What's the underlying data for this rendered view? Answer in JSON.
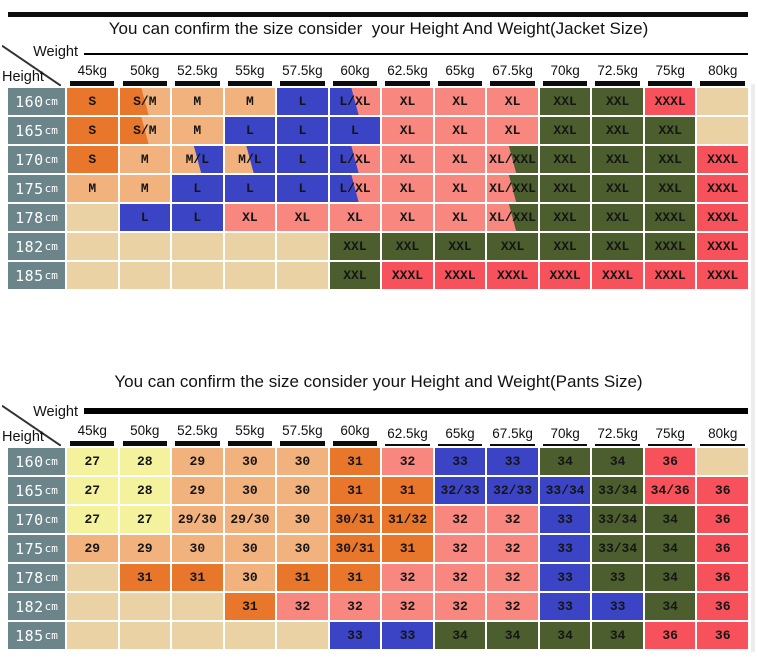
{
  "palette": {
    "orange": "#E8762B",
    "tan": "#F2B27D",
    "blank": "#EAD2A5",
    "yellow": "#F5F29E",
    "blue": "#3A44C5",
    "pink": "#F8877F",
    "green": "#4C5E2E",
    "red": "#F7525B",
    "slate": "#6B858B",
    "bar": "#0D0D0D"
  },
  "chart_data": [
    {
      "type": "table",
      "title": "You can confirm the size consider  your Height And Weight(Jacket Size)",
      "col_axis": "Weight",
      "row_axis": "Height",
      "columns": [
        "45kg",
        "50kg",
        "52.5kg",
        "55kg",
        "57.5kg",
        "60kg",
        "62.5kg",
        "65kg",
        "67.5kg",
        "70kg",
        "72.5kg",
        "75kg",
        "80kg"
      ],
      "rows": [
        {
          "label": "160cm",
          "cells": [
            {
              "t": "S",
              "c": "orange"
            },
            {
              "t": "S/M",
              "c": "orange",
              "c2": "tan"
            },
            {
              "t": "M",
              "c": "tan"
            },
            {
              "t": "M",
              "c": "tan"
            },
            {
              "t": "L",
              "c": "blue"
            },
            {
              "t": "L/XL",
              "c": "blue",
              "c2": "pink"
            },
            {
              "t": "XL",
              "c": "pink"
            },
            {
              "t": "XL",
              "c": "pink"
            },
            {
              "t": "XL",
              "c": "pink"
            },
            {
              "t": "XXL",
              "c": "green"
            },
            {
              "t": "XXL",
              "c": "green"
            },
            {
              "t": "XXXL",
              "c": "red"
            },
            {
              "t": "",
              "c": "blank"
            }
          ]
        },
        {
          "label": "165cm",
          "cells": [
            {
              "t": "S",
              "c": "orange"
            },
            {
              "t": "S/M",
              "c": "orange",
              "c2": "tan"
            },
            {
              "t": "M",
              "c": "tan"
            },
            {
              "t": "L",
              "c": "blue"
            },
            {
              "t": "L",
              "c": "blue"
            },
            {
              "t": "L",
              "c": "blue"
            },
            {
              "t": "XL",
              "c": "pink"
            },
            {
              "t": "XL",
              "c": "pink"
            },
            {
              "t": "XL",
              "c": "pink"
            },
            {
              "t": "XXL",
              "c": "green"
            },
            {
              "t": "XXL",
              "c": "green"
            },
            {
              "t": "XXL",
              "c": "green"
            },
            {
              "t": "",
              "c": "blank"
            }
          ]
        },
        {
          "label": "170cm",
          "cells": [
            {
              "t": "S",
              "c": "orange"
            },
            {
              "t": "M",
              "c": "tan"
            },
            {
              "t": "M/L",
              "c": "tan",
              "c2": "blue"
            },
            {
              "t": "M/L",
              "c": "tan",
              "c2": "blue"
            },
            {
              "t": "L",
              "c": "blue"
            },
            {
              "t": "L/XL",
              "c": "blue",
              "c2": "pink"
            },
            {
              "t": "XL",
              "c": "pink"
            },
            {
              "t": "XL",
              "c": "pink"
            },
            {
              "t": "XL/XXL",
              "c": "pink",
              "c2": "green"
            },
            {
              "t": "XXL",
              "c": "green"
            },
            {
              "t": "XXL",
              "c": "green"
            },
            {
              "t": "XXL",
              "c": "green"
            },
            {
              "t": "XXXL",
              "c": "red"
            }
          ]
        },
        {
          "label": "175cm",
          "cells": [
            {
              "t": "M",
              "c": "tan"
            },
            {
              "t": "M",
              "c": "tan"
            },
            {
              "t": "L",
              "c": "blue"
            },
            {
              "t": "L",
              "c": "blue"
            },
            {
              "t": "L",
              "c": "blue"
            },
            {
              "t": "L/XL",
              "c": "blue",
              "c2": "pink"
            },
            {
              "t": "XL",
              "c": "pink"
            },
            {
              "t": "XL",
              "c": "pink"
            },
            {
              "t": "XL/XXL",
              "c": "pink",
              "c2": "green"
            },
            {
              "t": "XXL",
              "c": "green"
            },
            {
              "t": "XXL",
              "c": "green"
            },
            {
              "t": "XXL",
              "c": "green"
            },
            {
              "t": "XXXL",
              "c": "red"
            }
          ]
        },
        {
          "label": "178cm",
          "cells": [
            {
              "t": "",
              "c": "blank"
            },
            {
              "t": "L",
              "c": "blue"
            },
            {
              "t": "L",
              "c": "blue"
            },
            {
              "t": "XL",
              "c": "pink"
            },
            {
              "t": "XL",
              "c": "pink"
            },
            {
              "t": "XL",
              "c": "pink"
            },
            {
              "t": "XL",
              "c": "pink"
            },
            {
              "t": "XL",
              "c": "pink"
            },
            {
              "t": "XL/XXL",
              "c": "pink",
              "c2": "green"
            },
            {
              "t": "XXL",
              "c": "green"
            },
            {
              "t": "XXL",
              "c": "green"
            },
            {
              "t": "XXXL",
              "c": "green"
            },
            {
              "t": "XXXL",
              "c": "red"
            }
          ]
        },
        {
          "label": "182cm",
          "cells": [
            {
              "t": "",
              "c": "blank"
            },
            {
              "t": "",
              "c": "blank"
            },
            {
              "t": "",
              "c": "blank"
            },
            {
              "t": "",
              "c": "blank"
            },
            {
              "t": "",
              "c": "blank"
            },
            {
              "t": "XXL",
              "c": "green"
            },
            {
              "t": "XXL",
              "c": "green"
            },
            {
              "t": "XXL",
              "c": "green"
            },
            {
              "t": "XXL",
              "c": "green"
            },
            {
              "t": "XXL",
              "c": "green"
            },
            {
              "t": "XXL",
              "c": "green"
            },
            {
              "t": "XXXL",
              "c": "green"
            },
            {
              "t": "XXXL",
              "c": "red"
            }
          ]
        },
        {
          "label": "185cm",
          "cells": [
            {
              "t": "",
              "c": "blank"
            },
            {
              "t": "",
              "c": "blank"
            },
            {
              "t": "",
              "c": "blank"
            },
            {
              "t": "",
              "c": "blank"
            },
            {
              "t": "",
              "c": "blank"
            },
            {
              "t": "XXL",
              "c": "green"
            },
            {
              "t": "XXXL",
              "c": "red"
            },
            {
              "t": "XXXL",
              "c": "red"
            },
            {
              "t": "XXXL",
              "c": "red"
            },
            {
              "t": "XXXL",
              "c": "red"
            },
            {
              "t": "XXXL",
              "c": "red"
            },
            {
              "t": "XXXL",
              "c": "red"
            },
            {
              "t": "XXXL",
              "c": "red"
            }
          ]
        }
      ]
    },
    {
      "type": "table",
      "title": "You can confirm the size consider your Height and Weight(Pants Size)",
      "col_axis": "Weight",
      "row_axis": "Height",
      "columns": [
        "45kg",
        "50kg",
        "52.5kg",
        "55kg",
        "57.5kg",
        "60kg",
        "62.5kg",
        "65kg",
        "67.5kg",
        "70kg",
        "72.5kg",
        "75kg",
        "80kg"
      ],
      "rows": [
        {
          "label": "160cm",
          "cells": [
            {
              "t": "27",
              "c": "yellow"
            },
            {
              "t": "28",
              "c": "yellow"
            },
            {
              "t": "29",
              "c": "tan"
            },
            {
              "t": "30",
              "c": "tan"
            },
            {
              "t": "30",
              "c": "tan"
            },
            {
              "t": "31",
              "c": "orange"
            },
            {
              "t": "32",
              "c": "pink"
            },
            {
              "t": "33",
              "c": "blue"
            },
            {
              "t": "33",
              "c": "blue"
            },
            {
              "t": "34",
              "c": "green"
            },
            {
              "t": "34",
              "c": "green"
            },
            {
              "t": "36",
              "c": "red"
            },
            {
              "t": "",
              "c": "blank"
            }
          ]
        },
        {
          "label": "165cm",
          "cells": [
            {
              "t": "27",
              "c": "yellow"
            },
            {
              "t": "28",
              "c": "yellow"
            },
            {
              "t": "29",
              "c": "tan"
            },
            {
              "t": "30",
              "c": "tan"
            },
            {
              "t": "30",
              "c": "tan"
            },
            {
              "t": "31",
              "c": "orange"
            },
            {
              "t": "31",
              "c": "orange"
            },
            {
              "t": "32/33",
              "c": "blue"
            },
            {
              "t": "32/33",
              "c": "blue"
            },
            {
              "t": "33/34",
              "c": "blue"
            },
            {
              "t": "33/34",
              "c": "green"
            },
            {
              "t": "34/36",
              "c": "red"
            },
            {
              "t": "36",
              "c": "red"
            }
          ]
        },
        {
          "label": "170cm",
          "cells": [
            {
              "t": "27",
              "c": "yellow"
            },
            {
              "t": "27",
              "c": "yellow"
            },
            {
              "t": "29/30",
              "c": "tan"
            },
            {
              "t": "29/30",
              "c": "tan"
            },
            {
              "t": "30",
              "c": "tan"
            },
            {
              "t": "30/31",
              "c": "orange"
            },
            {
              "t": "31/32",
              "c": "orange"
            },
            {
              "t": "32",
              "c": "pink"
            },
            {
              "t": "32",
              "c": "pink"
            },
            {
              "t": "33",
              "c": "blue"
            },
            {
              "t": "33/34",
              "c": "green"
            },
            {
              "t": "34",
              "c": "green"
            },
            {
              "t": "36",
              "c": "red"
            }
          ]
        },
        {
          "label": "175cm",
          "cells": [
            {
              "t": "29",
              "c": "tan"
            },
            {
              "t": "29",
              "c": "tan"
            },
            {
              "t": "30",
              "c": "tan"
            },
            {
              "t": "30",
              "c": "tan"
            },
            {
              "t": "30",
              "c": "tan"
            },
            {
              "t": "30/31",
              "c": "orange"
            },
            {
              "t": "31",
              "c": "orange"
            },
            {
              "t": "32",
              "c": "pink"
            },
            {
              "t": "32",
              "c": "pink"
            },
            {
              "t": "33",
              "c": "blue"
            },
            {
              "t": "33/34",
              "c": "green"
            },
            {
              "t": "34",
              "c": "green"
            },
            {
              "t": "36",
              "c": "red"
            }
          ]
        },
        {
          "label": "178cm",
          "cells": [
            {
              "t": "",
              "c": "blank"
            },
            {
              "t": "31",
              "c": "orange"
            },
            {
              "t": "31",
              "c": "orange"
            },
            {
              "t": "30",
              "c": "tan"
            },
            {
              "t": "31",
              "c": "orange"
            },
            {
              "t": "31",
              "c": "orange"
            },
            {
              "t": "32",
              "c": "pink"
            },
            {
              "t": "32",
              "c": "pink"
            },
            {
              "t": "32",
              "c": "pink"
            },
            {
              "t": "33",
              "c": "blue"
            },
            {
              "t": "33",
              "c": "green"
            },
            {
              "t": "34",
              "c": "green"
            },
            {
              "t": "36",
              "c": "red"
            }
          ]
        },
        {
          "label": "182cm",
          "cells": [
            {
              "t": "",
              "c": "blank"
            },
            {
              "t": "",
              "c": "blank"
            },
            {
              "t": "",
              "c": "blank"
            },
            {
              "t": "31",
              "c": "orange"
            },
            {
              "t": "32",
              "c": "pink"
            },
            {
              "t": "32",
              "c": "pink"
            },
            {
              "t": "32",
              "c": "pink"
            },
            {
              "t": "32",
              "c": "pink"
            },
            {
              "t": "32",
              "c": "pink"
            },
            {
              "t": "33",
              "c": "blue"
            },
            {
              "t": "33",
              "c": "blue"
            },
            {
              "t": "34",
              "c": "green"
            },
            {
              "t": "36",
              "c": "red"
            }
          ]
        },
        {
          "label": "185cm",
          "cells": [
            {
              "t": "",
              "c": "blank"
            },
            {
              "t": "",
              "c": "blank"
            },
            {
              "t": "",
              "c": "blank"
            },
            {
              "t": "",
              "c": "blank"
            },
            {
              "t": "",
              "c": "blank"
            },
            {
              "t": "33",
              "c": "blue"
            },
            {
              "t": "33",
              "c": "blue"
            },
            {
              "t": "34",
              "c": "green"
            },
            {
              "t": "34",
              "c": "green"
            },
            {
              "t": "34",
              "c": "green"
            },
            {
              "t": "34",
              "c": "green"
            },
            {
              "t": "36",
              "c": "red"
            },
            {
              "t": "36",
              "c": "red"
            }
          ]
        }
      ]
    }
  ]
}
